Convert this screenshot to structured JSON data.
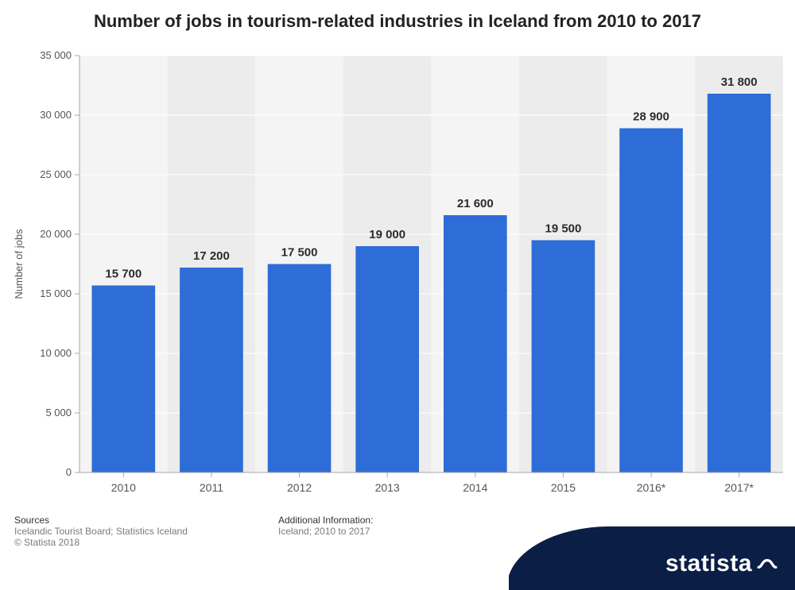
{
  "title": "Number of jobs in tourism-related industries in Iceland from 2010 to 2017",
  "title_fontsize": 22,
  "chart": {
    "type": "bar",
    "categories": [
      "2010",
      "2011",
      "2012",
      "2013",
      "2014",
      "2015",
      "2016*",
      "2017*"
    ],
    "values": [
      15700,
      17200,
      17500,
      19000,
      21600,
      19500,
      28900,
      31800
    ],
    "value_labels": [
      "15 700",
      "17 200",
      "17 500",
      "19 000",
      "21 600",
      "19 500",
      "28 900",
      "31 800"
    ],
    "bar_color": "#2e6cd7",
    "ylim": [
      0,
      35000
    ],
    "ytick_step": 5000,
    "ytick_labels": [
      "0",
      "5 000",
      "10 000",
      "15 000",
      "20 000",
      "25 000",
      "30 000",
      "35 000"
    ],
    "ylabel": "Number of jobs",
    "axis_label_fontsize": 13,
    "tick_fontsize": 13,
    "xtick_fontsize": 14,
    "bar_label_fontsize": 15,
    "plot_background": "#f4f4f4",
    "plot_background_alt": "#ececec",
    "grid_color": "#ffffff",
    "axis_color": "#a7a7a7",
    "tick_color": "#a7a7a7",
    "bar_width_ratio": 0.72
  },
  "footer": {
    "sources_header": "Sources",
    "sources_line1": "Icelandic Tourist Board; Statistics Iceland",
    "sources_line2": "© Statista 2018",
    "addinfo_header": "Additional Information:",
    "addinfo_line1": "Iceland; 2010 to 2017",
    "badge_text": "statista",
    "badge_bg": "#0a1e46",
    "badge_accent": "#2563a5"
  }
}
